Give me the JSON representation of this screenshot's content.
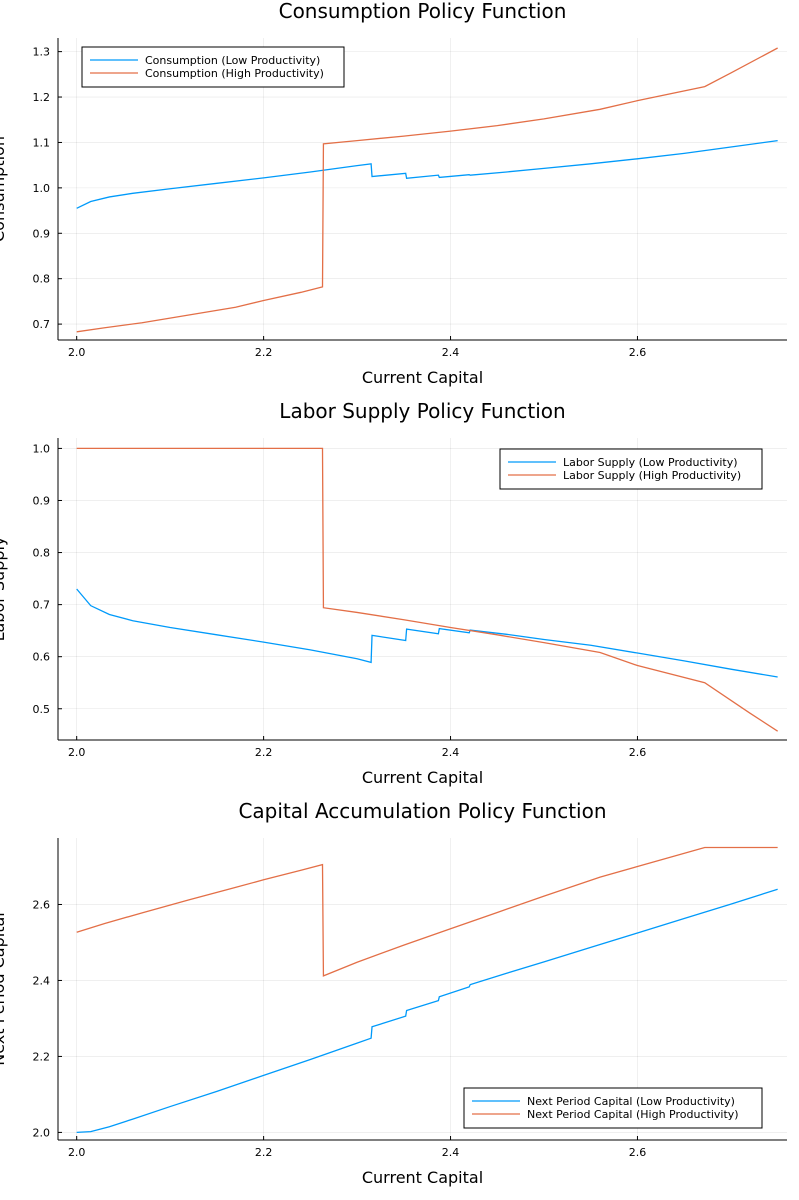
{
  "chart_data": [
    {
      "type": "line",
      "title": "Consumption Policy Function",
      "xlabel": "Current Capital",
      "ylabel": "Consumption",
      "xlim": [
        1.98,
        2.76
      ],
      "ylim": [
        0.665,
        1.33
      ],
      "xticks": [
        2.0,
        2.2,
        2.4,
        2.6
      ],
      "xtick_labels": [
        "2.0",
        "2.2",
        "2.4",
        "2.6"
      ],
      "yticks": [
        0.7,
        0.8,
        0.9,
        1.0,
        1.1,
        1.2,
        1.3
      ],
      "ytick_labels": [
        "0.7",
        "0.8",
        "0.9",
        "1.0",
        "1.1",
        "1.2",
        "1.3"
      ],
      "grid": true,
      "legend_position": "top-left",
      "series": [
        {
          "name": "Consumption (Low Productivity)",
          "color": "#009AFA",
          "x": [
            2.0,
            2.015,
            2.035,
            2.06,
            2.1,
            2.15,
            2.2,
            2.25,
            2.3,
            2.315,
            2.316,
            2.352,
            2.353,
            2.387,
            2.388,
            2.42,
            2.421,
            2.46,
            2.5,
            2.55,
            2.6,
            2.65,
            2.7,
            2.75
          ],
          "y": [
            0.955,
            0.97,
            0.98,
            0.988,
            0.998,
            1.01,
            1.022,
            1.035,
            1.049,
            1.053,
            1.025,
            1.032,
            1.021,
            1.028,
            1.023,
            1.029,
            1.028,
            1.035,
            1.043,
            1.053,
            1.064,
            1.076,
            1.09,
            1.104
          ]
        },
        {
          "name": "Consumption (High Productivity)",
          "color": "#E36F47",
          "x": [
            2.0,
            2.03,
            2.07,
            2.12,
            2.17,
            2.2,
            2.24,
            2.263,
            2.264,
            2.3,
            2.35,
            2.4,
            2.45,
            2.5,
            2.56,
            2.6,
            2.672,
            2.7,
            2.75
          ],
          "y": [
            0.683,
            0.692,
            0.703,
            0.72,
            0.737,
            0.752,
            0.77,
            0.782,
            1.097,
            1.104,
            1.114,
            1.125,
            1.137,
            1.152,
            1.173,
            1.192,
            1.223,
            1.253,
            1.308
          ]
        }
      ]
    },
    {
      "type": "line",
      "title": "Labor Supply Policy Function",
      "xlabel": "Current Capital",
      "ylabel": "Labor Supply",
      "xlim": [
        1.98,
        2.76
      ],
      "ylim": [
        0.44,
        1.02
      ],
      "xticks": [
        2.0,
        2.2,
        2.4,
        2.6
      ],
      "xtick_labels": [
        "2.0",
        "2.2",
        "2.4",
        "2.6"
      ],
      "yticks": [
        0.5,
        0.6,
        0.7,
        0.8,
        0.9,
        1.0
      ],
      "ytick_labels": [
        "0.5",
        "0.6",
        "0.7",
        "0.8",
        "0.9",
        "1.0"
      ],
      "grid": true,
      "legend_position": "top-right",
      "series": [
        {
          "name": "Labor Supply (Low Productivity)",
          "color": "#009AFA",
          "x": [
            2.0,
            2.015,
            2.035,
            2.06,
            2.1,
            2.15,
            2.2,
            2.25,
            2.3,
            2.315,
            2.316,
            2.352,
            2.353,
            2.387,
            2.388,
            2.42,
            2.421,
            2.46,
            2.5,
            2.55,
            2.6,
            2.65,
            2.7,
            2.75
          ],
          "y": [
            0.73,
            0.698,
            0.681,
            0.669,
            0.656,
            0.642,
            0.628,
            0.613,
            0.596,
            0.589,
            0.641,
            0.631,
            0.653,
            0.644,
            0.654,
            0.646,
            0.651,
            0.643,
            0.633,
            0.622,
            0.607,
            0.592,
            0.576,
            0.561
          ]
        },
        {
          "name": "Labor Supply (High Productivity)",
          "color": "#E36F47",
          "x": [
            2.0,
            2.1,
            2.2,
            2.263,
            2.264,
            2.3,
            2.35,
            2.4,
            2.45,
            2.5,
            2.56,
            2.6,
            2.672,
            2.72,
            2.75
          ],
          "y": [
            1.0,
            1.0,
            1.0,
            1.0,
            0.694,
            0.685,
            0.671,
            0.656,
            0.642,
            0.627,
            0.608,
            0.583,
            0.55,
            0.492,
            0.457
          ]
        }
      ]
    },
    {
      "type": "line",
      "title": "Capital Accumulation Policy Function",
      "xlabel": "Current Capital",
      "ylabel": "Next Period Capital",
      "xlim": [
        1.98,
        2.76
      ],
      "ylim": [
        1.98,
        2.775
      ],
      "xticks": [
        2.0,
        2.2,
        2.4,
        2.6
      ],
      "xtick_labels": [
        "2.0",
        "2.2",
        "2.4",
        "2.6"
      ],
      "yticks": [
        2.0,
        2.2,
        2.4,
        2.6
      ],
      "ytick_labels": [
        "2.0",
        "2.2",
        "2.4",
        "2.6"
      ],
      "grid": true,
      "legend_position": "bottom-right",
      "series": [
        {
          "name": "Next Period Capital (Low Productivity)",
          "color": "#009AFA",
          "x": [
            2.0,
            2.015,
            2.035,
            2.06,
            2.1,
            2.15,
            2.2,
            2.25,
            2.3,
            2.315,
            2.316,
            2.352,
            2.353,
            2.387,
            2.388,
            2.42,
            2.421,
            2.46,
            2.5,
            2.55,
            2.6,
            2.65,
            2.7,
            2.75
          ],
          "y": [
            2.0,
            2.002,
            2.015,
            2.035,
            2.068,
            2.108,
            2.15,
            2.192,
            2.235,
            2.248,
            2.278,
            2.306,
            2.321,
            2.347,
            2.357,
            2.383,
            2.389,
            2.419,
            2.449,
            2.487,
            2.525,
            2.563,
            2.601,
            2.64
          ]
        },
        {
          "name": "Next Period Capital (High Productivity)",
          "color": "#E36F47",
          "x": [
            2.0,
            2.03,
            2.07,
            2.12,
            2.17,
            2.2,
            2.24,
            2.263,
            2.264,
            2.3,
            2.35,
            2.4,
            2.45,
            2.5,
            2.56,
            2.6,
            2.672,
            2.7,
            2.75
          ],
          "y": [
            2.527,
            2.55,
            2.578,
            2.612,
            2.645,
            2.665,
            2.69,
            2.705,
            2.412,
            2.448,
            2.493,
            2.536,
            2.579,
            2.622,
            2.672,
            2.7,
            2.75,
            2.75,
            2.75
          ]
        }
      ]
    }
  ]
}
